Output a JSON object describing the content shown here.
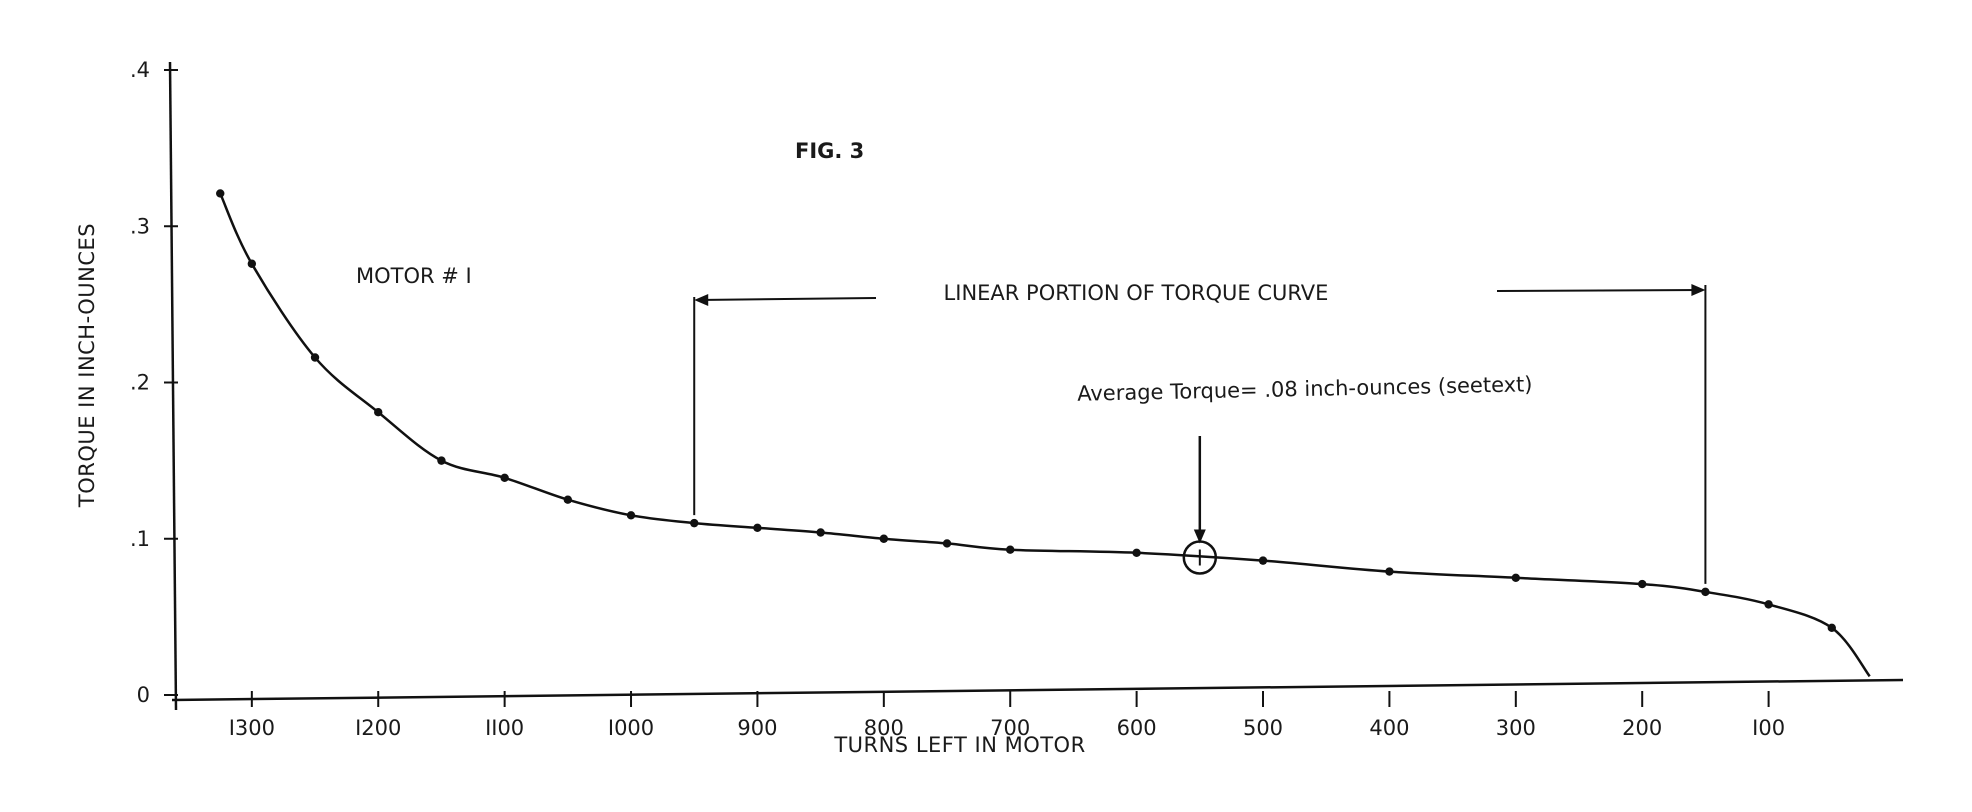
{
  "chart_data": {
    "type": "scatter",
    "title": "FIG. 3",
    "xlabel": "TURNS LEFT IN MOTOR",
    "ylabel": "TORQUE IN INCH-OUNCES",
    "x_reversed": true,
    "xlim": [
      1360,
      0
    ],
    "ylim": [
      0,
      0.4
    ],
    "x_ticks": [
      {
        "value": 1300,
        "label": "I300"
      },
      {
        "value": 1200,
        "label": "I200"
      },
      {
        "value": 1100,
        "label": "II00"
      },
      {
        "value": 1000,
        "label": "I000"
      },
      {
        "value": 900,
        "label": "900"
      },
      {
        "value": 800,
        "label": "800"
      },
      {
        "value": 700,
        "label": "700"
      },
      {
        "value": 600,
        "label": "600"
      },
      {
        "value": 500,
        "label": "500"
      },
      {
        "value": 400,
        "label": "400"
      },
      {
        "value": 300,
        "label": "300"
      },
      {
        "value": 200,
        "label": "200"
      },
      {
        "value": 100,
        "label": "I00"
      }
    ],
    "y_ticks": [
      {
        "value": 0,
        "label": "0"
      },
      {
        "value": 0.1,
        "label": ".1"
      },
      {
        "value": 0.2,
        "label": ".2"
      },
      {
        "value": 0.3,
        "label": ".3"
      },
      {
        "value": 0.4,
        "label": ".4"
      }
    ],
    "series": [
      {
        "x": [
          1325,
          1300,
          1250,
          1200,
          1150,
          1100,
          1050,
          1000,
          950,
          900,
          850,
          800,
          750,
          700,
          600,
          500,
          400,
          300,
          200,
          150,
          100,
          50
        ],
        "y": [
          0.321,
          0.276,
          0.216,
          0.181,
          0.15,
          0.139,
          0.125,
          0.115,
          0.11,
          0.107,
          0.104,
          0.1,
          0.097,
          0.093,
          0.091,
          0.086,
          0.079,
          0.075,
          0.071,
          0.066,
          0.058,
          0.043
        ]
      }
    ],
    "curve_end": {
      "x": 20,
      "y": 0.012
    },
    "annotations": {
      "motor_label": "MOTOR # I",
      "linear_portion": "LINEAR PORTION OF TORQUE CURVE",
      "linear_range": [
        950,
        150
      ],
      "average_text": "Average Torque= .08 inch-ounces (seetext)",
      "average_point": {
        "x": 550,
        "y": 0.088
      }
    }
  }
}
